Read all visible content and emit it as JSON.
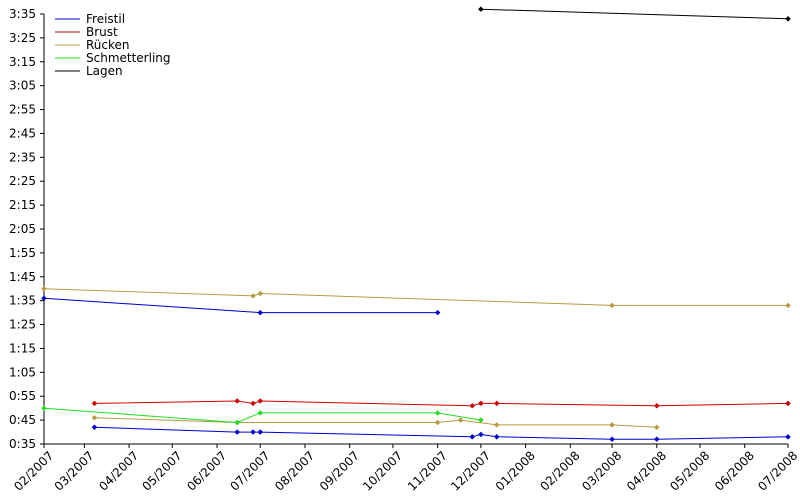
{
  "chart_data": {
    "type": "line",
    "title": "",
    "xlabel": "",
    "ylabel": "",
    "legend_position": "top-left",
    "grid": false,
    "ylim": [
      "0:35",
      "3:35"
    ],
    "xlim": [
      "2007-02",
      "2008-07"
    ],
    "x_ticks": [
      "02/2007",
      "03/2007",
      "04/2007",
      "05/2007",
      "06/2007",
      "07/2007",
      "08/2007",
      "09/2007",
      "10/2007",
      "11/2007",
      "12/2007",
      "01/2008",
      "02/2008",
      "03/2008",
      "04/2008",
      "05/2008",
      "06/2008",
      "07/2008"
    ],
    "y_ticks": [
      "0:35",
      "0:45",
      "0:55",
      "1:05",
      "1:15",
      "1:25",
      "1:35",
      "1:45",
      "1:55",
      "2:05",
      "2:15",
      "2:25",
      "2:35",
      "2:45",
      "2:55",
      "3:05",
      "3:15",
      "3:25",
      "3:35"
    ],
    "series": [
      {
        "name": "Freistil",
        "color": "#0000cc",
        "points": [
          {
            "x": "2007-03-08",
            "y": "0:42"
          },
          {
            "x": "2007-06-15",
            "y": "0:40"
          },
          {
            "x": "2007-06-26",
            "y": "0:40"
          },
          {
            "x": "2007-07-01",
            "y": "0:40"
          },
          {
            "x": "2007-11-25",
            "y": "0:38"
          },
          {
            "x": "2007-12-01",
            "y": "0:39"
          },
          {
            "x": "2007-12-12",
            "y": "0:38"
          },
          {
            "x": "2008-03-01",
            "y": "0:37"
          },
          {
            "x": "2008-04-01",
            "y": "0:37"
          },
          {
            "x": "2008-07-01",
            "y": "0:38"
          }
        ]
      },
      {
        "name": "Freistil",
        "color": "#0000cc",
        "points": [
          {
            "x": "2007-02-01",
            "y": "1:36"
          },
          {
            "x": "2007-07-01",
            "y": "1:30"
          },
          {
            "x": "2007-11-01",
            "y": "1:30"
          }
        ]
      },
      {
        "name": "Brust",
        "color": "#cc0000",
        "points": [
          {
            "x": "2007-03-08",
            "y": "0:52"
          },
          {
            "x": "2007-06-15",
            "y": "0:53"
          },
          {
            "x": "2007-06-26",
            "y": "0:52"
          },
          {
            "x": "2007-07-01",
            "y": "0:53"
          },
          {
            "x": "2007-11-25",
            "y": "0:51"
          },
          {
            "x": "2007-12-01",
            "y": "0:52"
          },
          {
            "x": "2007-12-12",
            "y": "0:52"
          },
          {
            "x": "2008-04-01",
            "y": "0:51"
          },
          {
            "x": "2008-07-01",
            "y": "0:52"
          }
        ]
      },
      {
        "name": "Rücken",
        "color": "#b89a40",
        "points": [
          {
            "x": "2007-02-01",
            "y": "1:40"
          },
          {
            "x": "2007-06-26",
            "y": "1:37"
          },
          {
            "x": "2007-07-01",
            "y": "1:38"
          },
          {
            "x": "2008-03-01",
            "y": "1:33"
          },
          {
            "x": "2008-07-01",
            "y": "1:33"
          }
        ]
      },
      {
        "name": "Rücken",
        "color": "#b89a40",
        "points": [
          {
            "x": "2007-03-08",
            "y": "0:46"
          },
          {
            "x": "2007-06-15",
            "y": "0:44"
          },
          {
            "x": "2007-11-01",
            "y": "0:44"
          },
          {
            "x": "2007-11-17",
            "y": "0:45"
          },
          {
            "x": "2007-12-12",
            "y": "0:43"
          },
          {
            "x": "2008-03-01",
            "y": "0:43"
          },
          {
            "x": "2008-04-01",
            "y": "0:42"
          }
        ]
      },
      {
        "name": "Schmetterling",
        "color": "#22dd22",
        "points": [
          {
            "x": "2007-02-01",
            "y": "0:50"
          },
          {
            "x": "2007-06-15",
            "y": "0:44"
          },
          {
            "x": "2007-07-01",
            "y": "0:48"
          },
          {
            "x": "2007-11-01",
            "y": "0:48"
          },
          {
            "x": "2007-12-01",
            "y": "0:45"
          }
        ]
      },
      {
        "name": "Lagen",
        "color": "#000000",
        "points": [
          {
            "x": "2007-12-01",
            "y": "3:37"
          },
          {
            "x": "2008-07-01",
            "y": "3:33"
          }
        ]
      }
    ],
    "legend": [
      {
        "label": "Freistil",
        "color": "#0000cc"
      },
      {
        "label": "Brust",
        "color": "#cc0000"
      },
      {
        "label": "Rücken",
        "color": "#b89a40"
      },
      {
        "label": "Schmetterling",
        "color": "#22dd22"
      },
      {
        "label": "Lagen",
        "color": "#000000"
      }
    ]
  }
}
